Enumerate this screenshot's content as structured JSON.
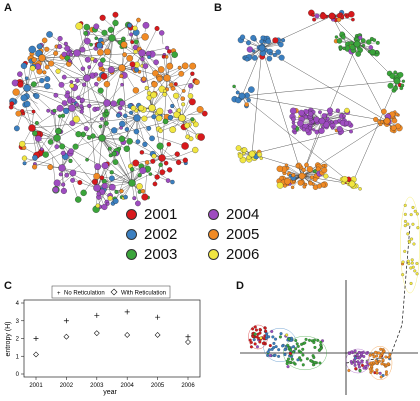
{
  "panels": {
    "a": "A",
    "b": "B",
    "c": "C",
    "d": "D"
  },
  "legend": [
    {
      "label": "2001",
      "color": "#d7191c"
    },
    {
      "label": "2004",
      "color": "#9e4cc0"
    },
    {
      "label": "2002",
      "color": "#3b7fc0"
    },
    {
      "label": "2005",
      "color": "#f08a24"
    },
    {
      "label": "2003",
      "color": "#3aa43a"
    },
    {
      "label": "2006",
      "color": "#f1e640"
    }
  ],
  "chart_data": [
    {
      "type": "scatter",
      "panel": "C",
      "title": "",
      "xlabel": "year",
      "ylabel": "entropy (H)",
      "categories": [
        "2001",
        "2002",
        "2003",
        "2004",
        "2005",
        "2006"
      ],
      "ylim": [
        0,
        4
      ],
      "yticks": [
        "0",
        "1",
        "2",
        "3",
        "4"
      ],
      "legend_position": "top",
      "series": [
        {
          "name": "No Reticulation",
          "marker": "plus",
          "values": [
            2.0,
            3.0,
            3.3,
            3.5,
            3.2,
            2.1
          ]
        },
        {
          "name": "With Reticulation",
          "marker": "diamond",
          "values": [
            1.1,
            2.1,
            2.3,
            2.2,
            2.2,
            1.8
          ]
        }
      ]
    }
  ]
}
